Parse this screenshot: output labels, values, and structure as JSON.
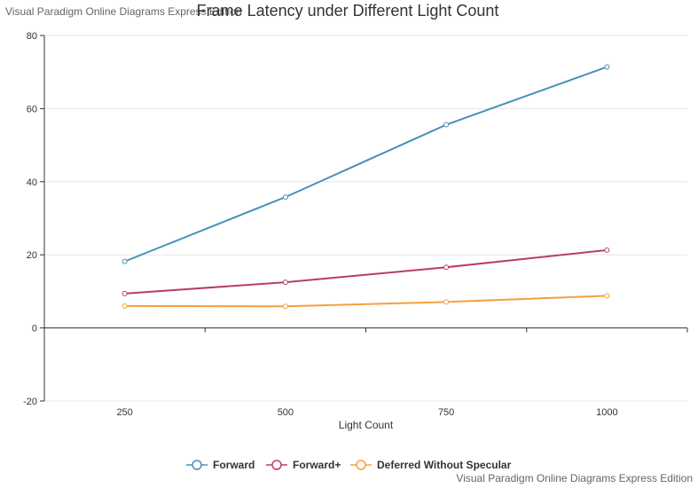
{
  "watermark_top": "Visual Paradigm Online Diagrams Express Edition",
  "watermark_bottom": "Visual Paradigm Online Diagrams Express Edition",
  "chart_data": {
    "type": "line",
    "title": "Frame Latency under Different Light Count",
    "xlabel": "Light Count",
    "ylabel": "",
    "categories": [
      "250",
      "500",
      "750",
      "1000"
    ],
    "ylim": [
      -20,
      80
    ],
    "yticks": [
      -20,
      0,
      20,
      40,
      60,
      80
    ],
    "grid": true,
    "legend_position": "bottom",
    "series": [
      {
        "name": "Forward",
        "color": "#4a90b8",
        "values": [
          18.2,
          35.8,
          55.6,
          71.4
        ]
      },
      {
        "name": "Forward+",
        "color": "#b8405e",
        "values": [
          9.4,
          12.5,
          16.6,
          21.3
        ]
      },
      {
        "name": "Deferred Without Specular",
        "color": "#f5a040",
        "values": [
          6.0,
          5.9,
          7.1,
          8.8
        ]
      }
    ]
  }
}
